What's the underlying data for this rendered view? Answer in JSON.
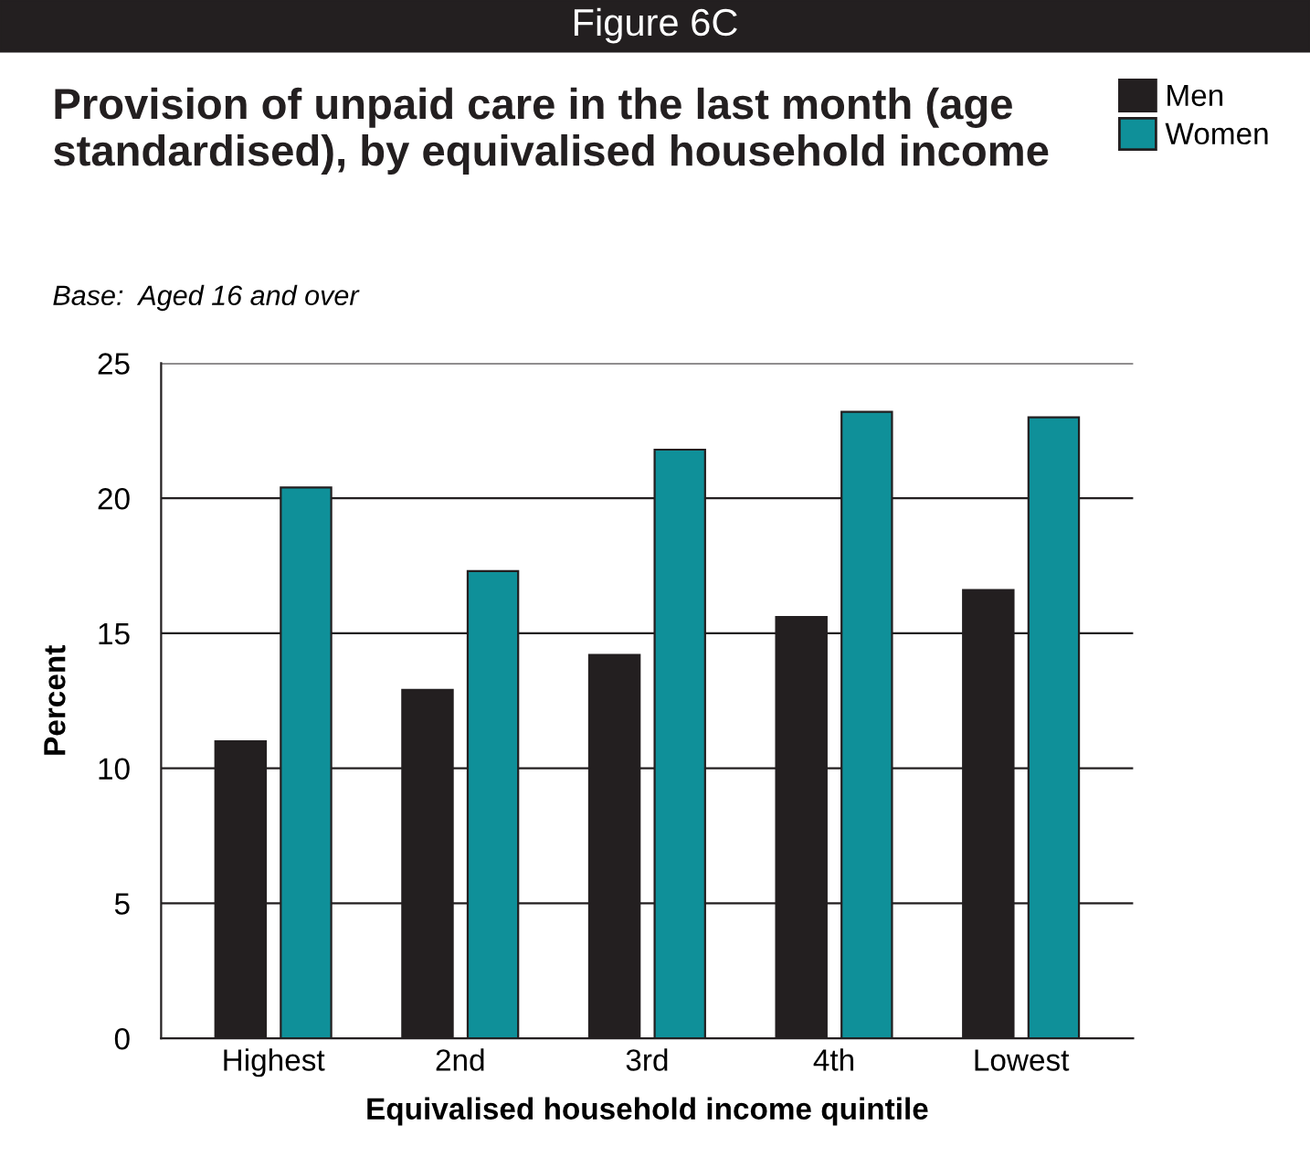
{
  "chart_data": {
    "type": "bar",
    "title": "Provision of unpaid care in the last month (age standardised), by equivalised household income",
    "subtitle": "Base:  Aged 16 and over",
    "annotations": [
      "Figure 6C"
    ],
    "xlabel": "Equivalised household income quintile",
    "ylabel": "Percent",
    "categories": [
      "Highest",
      "2nd",
      "3rd",
      "4th",
      "Lowest"
    ],
    "series": [
      {
        "name": "Men",
        "color": "#231f20",
        "values": [
          11.0,
          12.9,
          14.2,
          15.6,
          16.6
        ]
      },
      {
        "name": "Women",
        "color": "#0f9099",
        "values": [
          20.4,
          17.3,
          21.8,
          23.2,
          23.0
        ]
      }
    ],
    "ylim": [
      0,
      25
    ],
    "yticks": [
      0,
      5,
      10,
      15,
      20,
      25
    ],
    "grid": "y",
    "legend": "top right"
  }
}
